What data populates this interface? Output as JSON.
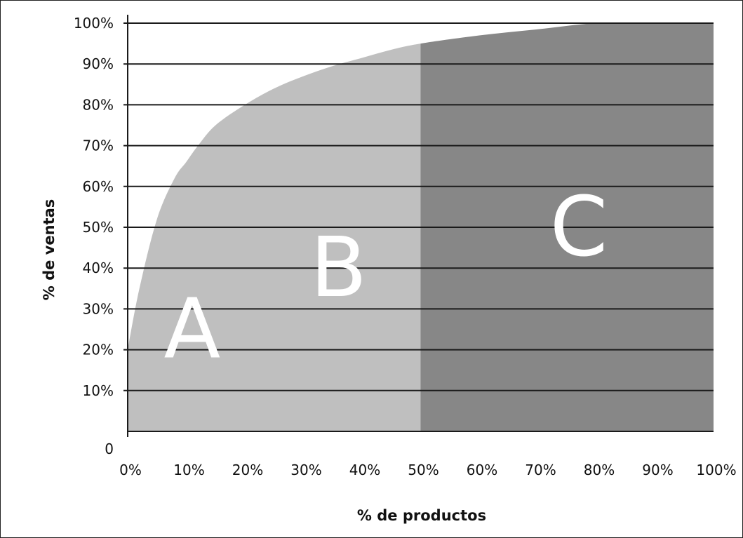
{
  "chart_data": {
    "type": "area",
    "title": "",
    "xlabel": "% de productos",
    "ylabel": "% de ventas",
    "x_ticks": [
      "0%",
      "10%",
      "20%",
      "30%",
      "40%",
      "50%",
      "60%",
      "70%",
      "80%",
      "90%",
      "100%"
    ],
    "y_ticks": [
      "0",
      "10%",
      "20%",
      "30%",
      "40%",
      "50%",
      "60%",
      "70%",
      "80%",
      "90%",
      "100%"
    ],
    "xlim": [
      0,
      100
    ],
    "ylim": [
      0,
      100
    ],
    "grid": "horizontal",
    "curve": {
      "x": [
        0,
        2,
        5,
        8,
        10,
        12,
        15,
        20,
        25,
        30,
        35,
        40,
        45,
        50,
        60,
        70,
        80,
        90,
        100
      ],
      "y": [
        20,
        35,
        52,
        62,
        66,
        70,
        75,
        80,
        84,
        87,
        89.5,
        91.5,
        93.5,
        95,
        97,
        98.5,
        100,
        100,
        100
      ]
    },
    "regions": [
      {
        "label": "A",
        "x_range": [
          0,
          50
        ],
        "y_text": 25
      },
      {
        "label": "B",
        "x_range": [
          0,
          50
        ],
        "y_text": 40
      },
      {
        "label": "C",
        "x_range": [
          50,
          100
        ],
        "y_text": 50
      }
    ],
    "colors": {
      "region_ab": "#bfbfbf",
      "region_c": "#878787",
      "gridline": "#1a1a1a",
      "label_text": "#ffffff"
    }
  }
}
